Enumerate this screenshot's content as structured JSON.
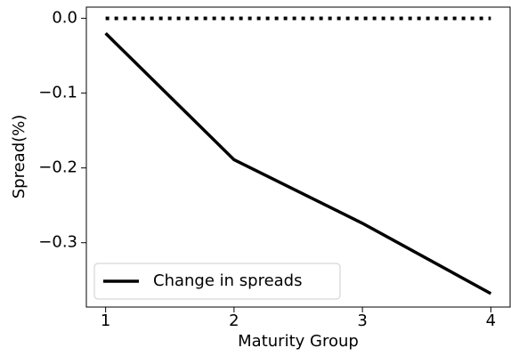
{
  "chart_data": {
    "type": "line",
    "x_label": "Maturity Group",
    "y_label": "Spread(%)",
    "x": [
      1,
      2,
      3,
      4
    ],
    "series": [
      {
        "name": "Change in spreads",
        "color": "#000000",
        "dash": "solid",
        "values": [
          -0.02,
          -0.189,
          -0.274,
          -0.368
        ]
      },
      {
        "color": "#000000",
        "dash": "dotted",
        "values": [
          0,
          0,
          0,
          0
        ]
      }
    ],
    "xlim": [
      0.85,
      4.15
    ],
    "ylim": [
      -0.386,
      0.015
    ],
    "xticks": [
      1,
      2,
      3,
      4
    ],
    "yticks": [
      {
        "value": 0,
        "label": "0.0"
      },
      {
        "value": -0.1,
        "label": "−0.1"
      },
      {
        "value": -0.2,
        "label": "−0.2"
      },
      {
        "value": -0.3,
        "label": "−0.3"
      }
    ],
    "grid": false,
    "legend": "lower left"
  }
}
